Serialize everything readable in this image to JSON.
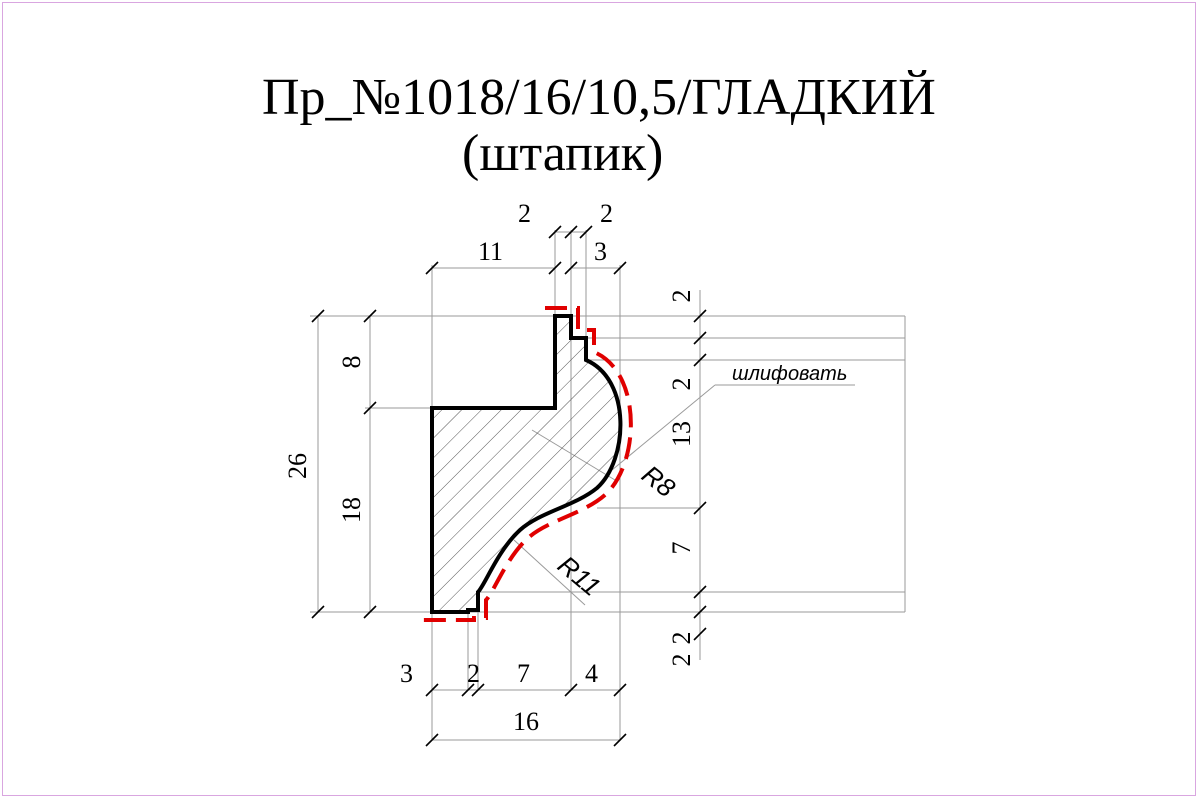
{
  "title": {
    "line1": "Пр_№1018/16/10,5/ГЛАДКИЙ",
    "line2": "(штапик)"
  },
  "dimensions": {
    "top_2_left": "2",
    "top_2_right": "2",
    "top_11": "11",
    "top_3": "3",
    "left_26": "26",
    "left_8": "8",
    "left_18": "18",
    "right_2_top": "2",
    "right_2_mid": "2",
    "right_13": "13",
    "right_7": "7",
    "right_2_bot_a": "2",
    "right_2_bot_b": "2",
    "bottom_3": "3",
    "bottom_2": "2",
    "bottom_7": "7",
    "bottom_4": "4",
    "bottom_16": "16"
  },
  "radii": {
    "r8": "R8",
    "r11": "R11"
  },
  "notes": {
    "polish": "шлифовать"
  },
  "colors": {
    "frame": "#d9a6e0",
    "profile": "#000000",
    "finish_line": "#e00000",
    "dim_line": "#9a9a9a",
    "hatch": "#555555"
  }
}
